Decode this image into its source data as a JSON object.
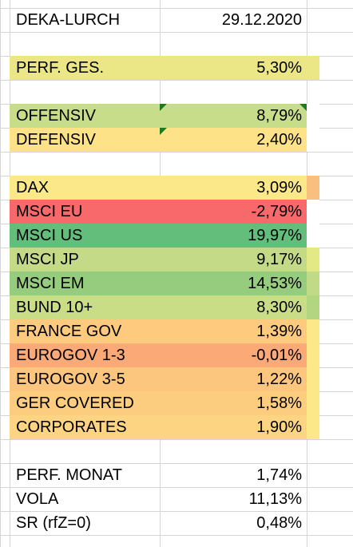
{
  "rows": [
    {
      "label": "DEKA-LURCH",
      "value": "29.12.2020",
      "fill": "",
      "extra": ""
    },
    {
      "label": "",
      "value": "",
      "fill": "",
      "extra": ""
    },
    {
      "label": "PERF. GES.",
      "value": "5,30%",
      "fill": "#ebe686",
      "extra": "#ebe686"
    },
    {
      "label": "",
      "value": "",
      "fill": "",
      "extra": ""
    },
    {
      "label": "OFFENSIV",
      "value": "8,79%",
      "fill": "#c7dd8a",
      "extra": "#ffffff"
    },
    {
      "label": "DEFENSIV",
      "value": "2,40%",
      "fill": "#fde287",
      "extra": "#ffffff"
    },
    {
      "label": "",
      "value": "",
      "fill": "",
      "extra": ""
    },
    {
      "label": "DAX",
      "value": "3,09%",
      "fill": "#fbe888",
      "extra": "#f9bf7f"
    },
    {
      "label": "MSCI EU",
      "value": "-2,79%",
      "fill": "#f8696b",
      "extra": "#ffffff"
    },
    {
      "label": "MSCI US",
      "value": "19,97%",
      "fill": "#63be7b",
      "extra": "#ffffff"
    },
    {
      "label": "MSCI JP",
      "value": "9,17%",
      "fill": "#c4da87",
      "extra": "#e3ea85"
    },
    {
      "label": "MSCI EM",
      "value": "14,53%",
      "fill": "#96cc7e",
      "extra": "#c0da86"
    },
    {
      "label": "BUND 10+",
      "value": "8,30%",
      "fill": "#c9dc86",
      "extra": "#b2d582"
    },
    {
      "label": "FRANCE GOV",
      "value": "1,39%",
      "fill": "#fdca7e",
      "extra": "#fde889"
    },
    {
      "label": "EUROGOV 1-3",
      "value": "-0,01%",
      "fill": "#fbaa77",
      "extra": "#fde889"
    },
    {
      "label": "EUROGOV 3-5",
      "value": "1,22%",
      "fill": "#fdc67e",
      "extra": "#fde889"
    },
    {
      "label": "GER COVERED",
      "value": "1,58%",
      "fill": "#fdcd7f",
      "extra": "#fde889"
    },
    {
      "label": "CORPORATES",
      "value": "1,90%",
      "fill": "#fdd481",
      "extra": "#fde889"
    },
    {
      "label": "",
      "value": "",
      "fill": "",
      "extra": ""
    },
    {
      "label": "PERF. MONAT",
      "value": "1,74%",
      "fill": "",
      "extra": ""
    },
    {
      "label": "VOLA",
      "value": "11,13%",
      "fill": "",
      "extra": ""
    },
    {
      "label": "SR (rfZ=0)",
      "value": "0,48%",
      "fill": "",
      "extra": ""
    }
  ]
}
